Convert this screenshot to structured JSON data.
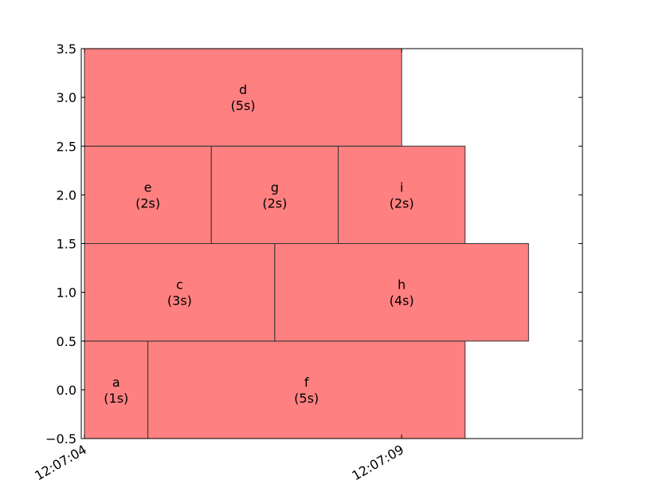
{
  "chart_data": {
    "type": "bar",
    "orientation": "horizontal-timeline",
    "title": "",
    "xlabel": "",
    "ylabel": "",
    "x_axis": "time",
    "xlim": [
      -0.05,
      7.85
    ],
    "ylim": [
      -0.5,
      3.5
    ],
    "x_ticks": [
      {
        "value": 0,
        "label": "12:07:04"
      },
      {
        "value": 5,
        "label": "12:07:09"
      }
    ],
    "y_ticks": [
      {
        "value": -0.5,
        "label": "−0.5"
      },
      {
        "value": 0.0,
        "label": "0.0"
      },
      {
        "value": 0.5,
        "label": "0.5"
      },
      {
        "value": 1.0,
        "label": "1.0"
      },
      {
        "value": 1.5,
        "label": "1.5"
      },
      {
        "value": 2.0,
        "label": "2.0"
      },
      {
        "value": 2.5,
        "label": "2.5"
      },
      {
        "value": 3.0,
        "label": "3.0"
      },
      {
        "value": 3.5,
        "label": "3.5"
      }
    ],
    "bar_color": "#ff8080",
    "edge_color": "#333333",
    "bars": [
      {
        "name": "a",
        "duration_label": "(1s)",
        "start": 0,
        "end": 1,
        "lane": 0
      },
      {
        "name": "f",
        "duration_label": "(5s)",
        "start": 1,
        "end": 6,
        "lane": 0
      },
      {
        "name": "c",
        "duration_label": "(3s)",
        "start": 0,
        "end": 3,
        "lane": 1
      },
      {
        "name": "h",
        "duration_label": "(4s)",
        "start": 3,
        "end": 7,
        "lane": 1
      },
      {
        "name": "e",
        "duration_label": "(2s)",
        "start": 0,
        "end": 2,
        "lane": 2
      },
      {
        "name": "g",
        "duration_label": "(2s)",
        "start": 2,
        "end": 4,
        "lane": 2
      },
      {
        "name": "i",
        "duration_label": "(2s)",
        "start": 4,
        "end": 6,
        "lane": 2
      },
      {
        "name": "d",
        "duration_label": "(5s)",
        "start": 0,
        "end": 5,
        "lane": 3
      }
    ]
  }
}
